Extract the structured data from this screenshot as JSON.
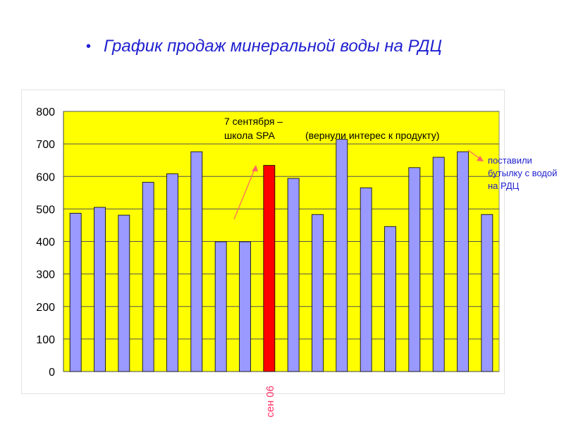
{
  "slide": {
    "bullet": "•",
    "title": "График продаж минеральной воды на РДЦ"
  },
  "annotations": {
    "spa_line1": "7 сентября –",
    "spa_line2": "школа SPA",
    "interest": "(вернули интерес к продукту)",
    "bottle_note": "поставили бутылку с водой на РДЦ",
    "x_label": "сен 06"
  },
  "colors": {
    "plot_bg": "#ffff00",
    "bar": "#9999ff",
    "bar_highlight": "#ff0000",
    "arrow": "#ff6666",
    "note": "#1f1fd0",
    "x_label": "#ff3366"
  },
  "chart_data": {
    "type": "bar",
    "values": [
      487,
      505,
      481,
      582,
      608,
      676,
      399,
      399,
      634,
      594,
      483,
      714,
      565,
      446,
      627,
      659,
      676,
      483
    ],
    "highlight_index": 8,
    "highlight_label": "сен 06",
    "ylim": [
      0,
      800
    ],
    "yticks": [
      0,
      100,
      200,
      300,
      400,
      500,
      600,
      700,
      800
    ],
    "grid": true,
    "legend": "none"
  }
}
